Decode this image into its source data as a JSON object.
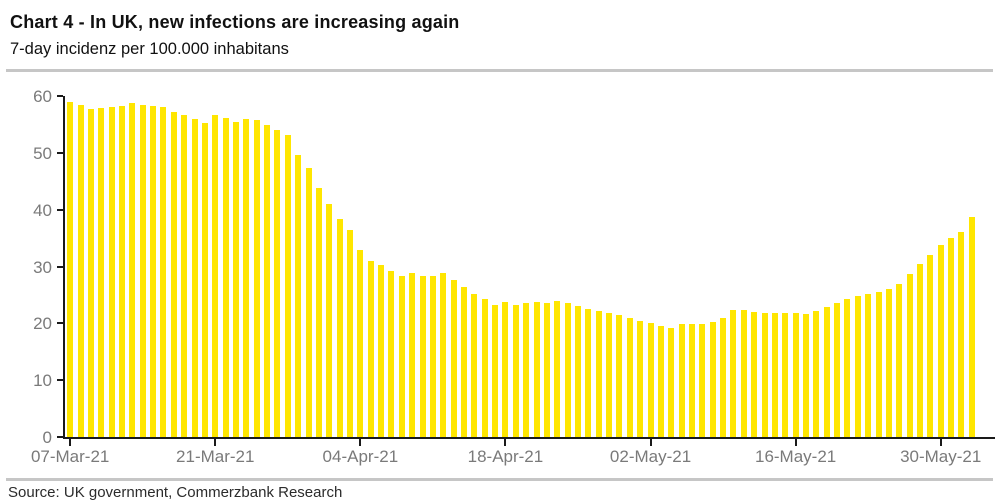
{
  "header": {
    "title": "Chart 4 - In UK, new infections are increasing again",
    "subtitle": "7-day incidenz per 100.000 inhabitans"
  },
  "footer": {
    "source": "Source: UK government, Commerzbank Research"
  },
  "colors": {
    "bar": "#FFE600",
    "axis": "#1a1a1a",
    "tick_label": "#7a7a7a",
    "divider": "#c6c6c6"
  },
  "chart_data": {
    "type": "bar",
    "title": "Chart 4 - In UK, new infections are increasing again",
    "subtitle": "7-day incidenz per 100.000 inhabitans",
    "xlabel": "",
    "ylabel": "",
    "ylim": [
      0,
      60
    ],
    "yticks": [
      0,
      10,
      20,
      30,
      40,
      50,
      60
    ],
    "grid": false,
    "legend": "none",
    "bar_color": "#FFE600",
    "xtick_labels": [
      "07-Mar-21",
      "21-Mar-21",
      "04-Apr-21",
      "18-Apr-21",
      "02-May-21",
      "16-May-21",
      "30-May-21"
    ],
    "xtick_indices": [
      0,
      14,
      28,
      42,
      56,
      70,
      84
    ],
    "x_frequency": "daily",
    "values": [
      58.9,
      58.5,
      57.7,
      57.9,
      58.1,
      58.2,
      58.8,
      58.5,
      58.2,
      58.1,
      57.1,
      56.6,
      55.9,
      55.3,
      56.6,
      56.2,
      55.4,
      56.0,
      55.8,
      54.9,
      54.1,
      53.1,
      49.7,
      47.3,
      43.9,
      41.0,
      38.3,
      36.5,
      32.9,
      31.0,
      30.2,
      29.2,
      28.4,
      28.8,
      28.4,
      28.4,
      28.8,
      27.6,
      26.4,
      25.1,
      24.2,
      23.3,
      23.7,
      23.3,
      23.5,
      23.7,
      23.5,
      23.9,
      23.5,
      23.1,
      22.5,
      22.2,
      21.8,
      21.4,
      20.9,
      20.5,
      20.1,
      19.6,
      19.2,
      19.8,
      19.8,
      19.9,
      20.2,
      20.9,
      22.3,
      22.3,
      22.0,
      21.8,
      21.8,
      21.8,
      21.9,
      21.6,
      22.2,
      22.9,
      23.5,
      24.2,
      24.8,
      25.2,
      25.6,
      26.1,
      27.0,
      28.6,
      30.4,
      32.1,
      33.8,
      35.1,
      36.1,
      38.8
    ]
  }
}
